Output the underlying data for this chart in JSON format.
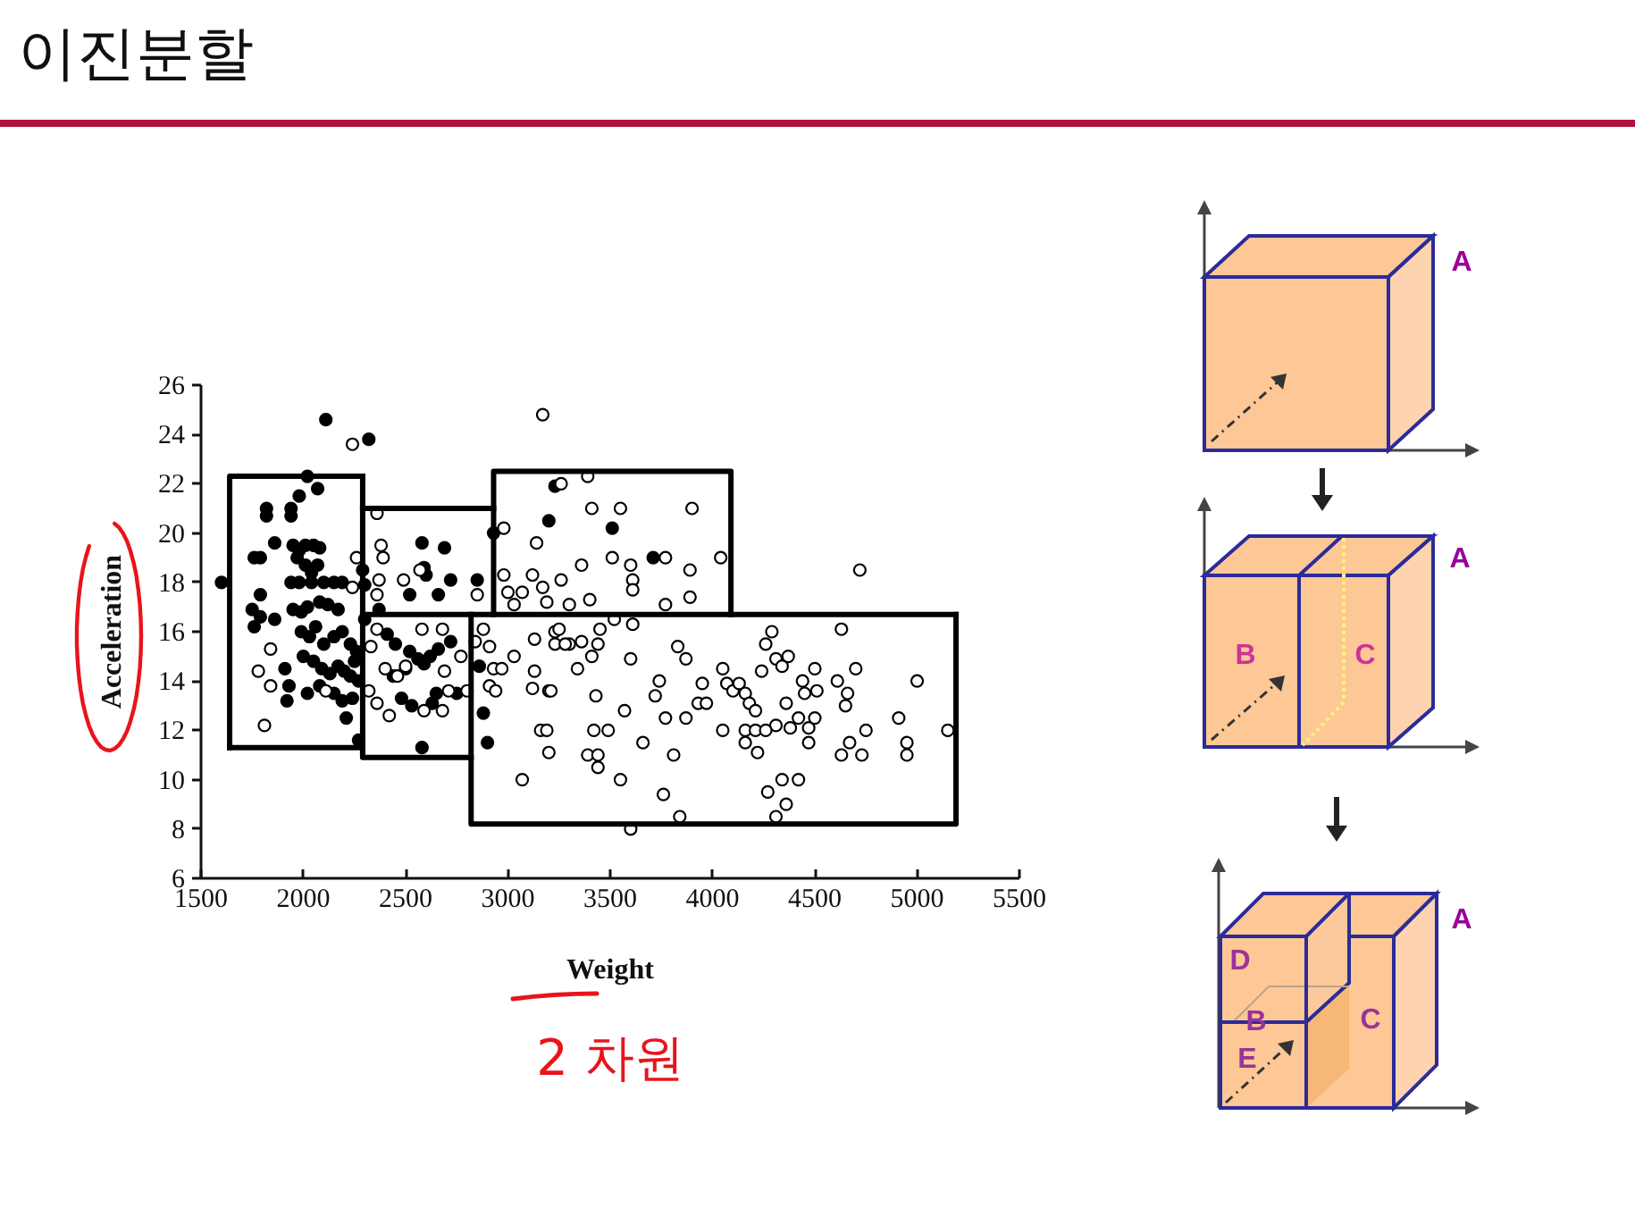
{
  "chart_data": [
    {
      "type": "scatter",
      "title": "이진분할",
      "xlabel": "Weight",
      "ylabel": "Acceleration",
      "annotations": [
        "2 차원"
      ],
      "xlim": [
        1500,
        5500
      ],
      "ylim": [
        6,
        26
      ],
      "xticks": [
        1500,
        2000,
        2500,
        3000,
        3500,
        4000,
        4500,
        5000,
        5500
      ],
      "yticks": [
        6,
        8,
        10,
        12,
        14,
        16,
        18,
        20,
        22,
        24,
        26
      ],
      "marker": "circle",
      "series": [
        {
          "color": "#000000",
          "x": [
            2110,
            2320,
            2020,
            2070,
            1980,
            1820,
            1820,
            1940,
            1940,
            1860,
            1760,
            1790,
            1950,
            1980,
            2010,
            2050,
            2080,
            1970,
            2010,
            2040,
            2070,
            1790,
            1600,
            1750,
            1760,
            1790,
            1860,
            1940,
            1980,
            2040,
            2100,
            2150,
            2190,
            1950,
            1990,
            2020,
            2080,
            2120,
            2170,
            1990,
            2030,
            2060,
            2100,
            2150,
            2190,
            2230,
            2260,
            2000,
            2050,
            2090,
            2130,
            2170,
            2200,
            2230,
            2270,
            2250,
            1910,
            1930,
            2020,
            2080,
            2150,
            2190,
            2240,
            1920,
            2210,
            2270,
            2300,
            2290,
            2300,
            2580,
            2690,
            2590,
            2600,
            2720,
            2520,
            2660,
            2850,
            2370,
            2410,
            2450,
            2520,
            2560,
            2590,
            2620,
            2660,
            2720,
            2500,
            2440,
            2480,
            2530,
            2650,
            2630,
            2750,
            2580,
            2880,
            2900,
            2930,
            2860,
            3200,
            3230,
            3510,
            3710
          ],
          "values": [
            24.6,
            23.8,
            22.3,
            21.8,
            21.5,
            21.0,
            20.7,
            21.0,
            20.7,
            19.6,
            19.0,
            19.0,
            19.5,
            19.3,
            19.5,
            19.5,
            19.4,
            19.0,
            18.7,
            18.4,
            18.7,
            17.5,
            18.0,
            16.9,
            16.2,
            16.6,
            16.5,
            18.0,
            18.0,
            18.0,
            18.0,
            18.0,
            18.0,
            16.9,
            16.8,
            17.0,
            17.2,
            17.1,
            16.9,
            16.0,
            15.8,
            16.2,
            15.5,
            15.8,
            16.0,
            15.5,
            15.2,
            15.0,
            14.8,
            14.5,
            14.3,
            14.6,
            14.4,
            14.2,
            14.0,
            14.8,
            14.5,
            13.8,
            13.5,
            13.8,
            13.5,
            13.2,
            13.3,
            13.2,
            12.5,
            11.6,
            16.5,
            18.5,
            17.9,
            19.6,
            19.4,
            18.6,
            18.3,
            18.1,
            17.5,
            17.5,
            18.1,
            16.9,
            15.9,
            15.5,
            15.2,
            14.9,
            14.7,
            15.0,
            15.3,
            15.6,
            14.5,
            14.2,
            13.3,
            13.0,
            13.5,
            13.1,
            13.5,
            11.3,
            12.7,
            11.5,
            20.0,
            14.6,
            20.5,
            21.9,
            20.2,
            19.0
          ]
        },
        {
          "color": "#ffffff",
          "x": [
            2240,
            3170,
            1840,
            1780,
            1840,
            2110,
            1810,
            2360,
            2380,
            2390,
            2490,
            2370,
            2360,
            2260,
            2240,
            2570,
            2850,
            2360,
            2330,
            2400,
            2460,
            2500,
            2580,
            2680,
            2770,
            2690,
            2710,
            2590,
            2680,
            2420,
            2360,
            2320,
            2800,
            2840,
            2880,
            2910,
            2930,
            2970,
            3030,
            3130,
            3230,
            3300,
            3130,
            3120,
            3200,
            2910,
            2940,
            3160,
            3200,
            3070,
            2980,
            3140,
            2980,
            3120,
            3170,
            3000,
            3070,
            3260,
            3300,
            3030,
            3260,
            3390,
            3410,
            3550,
            3900,
            3360,
            3510,
            3600,
            3610,
            3610,
            3770,
            3890,
            3890,
            4040,
            3190,
            3400,
            3770,
            4720,
            3250,
            3230,
            3280,
            3360,
            3440,
            3410,
            3340,
            3450,
            3520,
            3610,
            3600,
            3830,
            3870,
            3740,
            3720,
            3430,
            3210,
            3570,
            3770,
            3870,
            3950,
            3930,
            3970,
            4050,
            4070,
            4100,
            4130,
            4160,
            4180,
            4210,
            4050,
            4160,
            4220,
            4240,
            4260,
            4290,
            4310,
            4340,
            4370,
            4360,
            4310,
            4380,
            4440,
            4420,
            4470,
            4470,
            4500,
            4510,
            4500,
            4610,
            4630,
            4660,
            4650,
            4700,
            4750,
            4730,
            4670,
            4630,
            4910,
            4950,
            4950,
            5000,
            5150,
            3550,
            3760,
            3660,
            3810,
            3390,
            3440,
            3440,
            3190,
            3420,
            3490,
            3840,
            3600,
            4270,
            4340,
            4420,
            4360,
            4310,
            4160,
            4210,
            4260,
            4450
          ],
          "values": [
            23.6,
            24.8,
            15.3,
            14.4,
            13.8,
            13.6,
            12.2,
            20.8,
            19.5,
            19.0,
            18.1,
            18.1,
            17.5,
            19.0,
            17.8,
            18.5,
            17.5,
            16.1,
            15.4,
            14.5,
            14.2,
            14.6,
            16.1,
            16.1,
            15.0,
            14.4,
            13.6,
            12.8,
            12.8,
            12.6,
            13.1,
            13.6,
            13.6,
            15.6,
            16.1,
            15.4,
            14.5,
            14.5,
            15.0,
            15.7,
            16.0,
            15.5,
            14.4,
            13.7,
            13.6,
            13.8,
            13.6,
            12.0,
            11.1,
            10.0,
            20.2,
            19.6,
            18.3,
            18.3,
            17.8,
            17.6,
            17.6,
            18.1,
            17.1,
            17.1,
            22.0,
            22.3,
            21.0,
            21.0,
            21.0,
            18.7,
            19.0,
            18.7,
            18.1,
            17.7,
            19.0,
            18.5,
            17.4,
            19.0,
            17.2,
            17.3,
            17.1,
            18.5,
            16.1,
            15.5,
            15.5,
            15.6,
            15.5,
            15.0,
            14.5,
            16.1,
            16.5,
            16.3,
            14.9,
            15.4,
            14.9,
            14.0,
            13.4,
            13.4,
            13.6,
            12.8,
            12.5,
            12.5,
            13.9,
            13.1,
            13.1,
            14.5,
            13.9,
            13.6,
            13.9,
            13.5,
            13.1,
            12.8,
            12.0,
            11.5,
            11.1,
            14.4,
            15.5,
            16.0,
            14.9,
            14.6,
            15.0,
            13.1,
            12.2,
            12.1,
            14.0,
            12.5,
            12.1,
            11.5,
            14.5,
            13.6,
            12.5,
            14.0,
            16.1,
            13.5,
            13.0,
            14.5,
            12.0,
            11.0,
            11.5,
            11.0,
            12.5,
            11.5,
            11.0,
            14.0,
            12.0,
            10.0,
            9.4,
            11.5,
            11.0,
            11.0,
            11.0,
            10.5,
            12.0,
            12.0,
            12.0,
            8.5,
            8.0,
            9.5,
            10.0,
            10.0,
            9.0,
            8.5,
            12.0,
            12.0,
            12.0,
            13.5
          ]
        },
        {
          "type": "line",
          "marker": "none",
          "color": "#000000",
          "x": [
            1640,
            1640,
            2290
          ],
          "values": [
            11.3,
            22.3,
            22.3
          ]
        },
        {
          "type": "line",
          "marker": "none",
          "color": "#000000",
          "x": [
            1640,
            2290
          ],
          "values": [
            11.3,
            11.3
          ]
        },
        {
          "type": "line",
          "marker": "none",
          "color": "#000000",
          "x": [
            2290,
            2290,
            2820
          ],
          "values": [
            22.3,
            10.9,
            10.9
          ]
        },
        {
          "type": "line",
          "marker": "none",
          "color": "#000000",
          "x": [
            2290,
            2930
          ],
          "values": [
            21.0,
            21.0
          ]
        },
        {
          "type": "line",
          "marker": "none",
          "color": "#000000",
          "x": [
            2290,
            5190
          ],
          "values": [
            16.7,
            16.7
          ]
        },
        {
          "type": "line",
          "marker": "none",
          "color": "#000000",
          "x": [
            2820,
            2820,
            5190,
            5190
          ],
          "values": [
            16.7,
            8.2,
            8.2,
            16.7
          ]
        },
        {
          "type": "line",
          "marker": "none",
          "color": "#000000",
          "x": [
            2930,
            2930,
            4090,
            4090
          ],
          "values": [
            16.7,
            22.5,
            22.5,
            16.7
          ]
        }
      ]
    },
    {
      "type": "other",
      "annotations": [
        "A",
        "A",
        "B",
        "C",
        "A",
        "D",
        "B",
        "E",
        "C"
      ]
    }
  ]
}
